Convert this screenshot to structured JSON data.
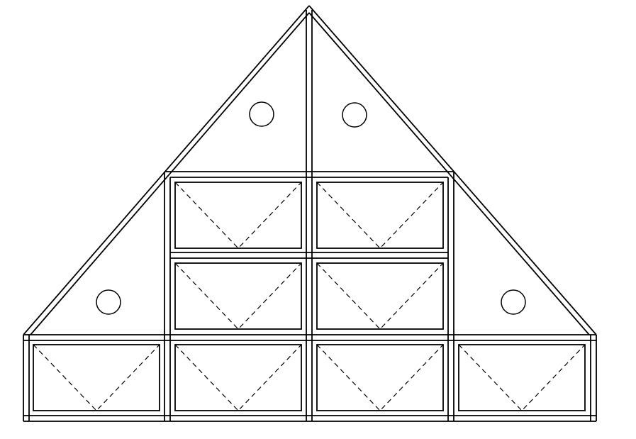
{
  "drawing": {
    "subject": "gable-end-shelving-elevation",
    "line_color": "#000000",
    "background": "#ffffff",
    "drawer_panel_count": 8,
    "porthole_count": 4,
    "drawer_fold_line_style": "dashed"
  }
}
